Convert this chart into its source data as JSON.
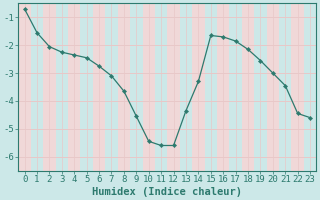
{
  "x": [
    0,
    1,
    2,
    3,
    4,
    5,
    6,
    7,
    8,
    9,
    10,
    11,
    12,
    13,
    14,
    15,
    16,
    17,
    18,
    19,
    20,
    21,
    22,
    23
  ],
  "y": [
    -0.7,
    -1.55,
    -2.05,
    -2.25,
    -2.35,
    -2.45,
    -2.75,
    -3.1,
    -3.65,
    -4.55,
    -5.45,
    -5.6,
    -5.6,
    -4.35,
    -3.3,
    -1.65,
    -1.7,
    -1.85,
    -2.15,
    -2.55,
    -3.0,
    -3.45,
    -4.45,
    -4.6
  ],
  "line_color": "#2d7a6e",
  "marker": "D",
  "markersize": 2.2,
  "bg_color": "#cce8e8",
  "grid_color_light": "#e8c8c8",
  "grid_color_dark": "#c8d8d8",
  "stripe_color": "#f0d8d8",
  "xlabel": "Humidex (Indice chaleur)",
  "xlim": [
    -0.5,
    23.5
  ],
  "ylim": [
    -6.5,
    -0.5
  ],
  "yticks": [
    -6,
    -5,
    -4,
    -3,
    -2,
    -1
  ],
  "xticks": [
    0,
    1,
    2,
    3,
    4,
    5,
    6,
    7,
    8,
    9,
    10,
    11,
    12,
    13,
    14,
    15,
    16,
    17,
    18,
    19,
    20,
    21,
    22,
    23
  ],
  "tick_color": "#2d7a6e",
  "axis_color": "#2d7a6e",
  "label_fontsize": 6.5,
  "xlabel_fontsize": 7.5
}
